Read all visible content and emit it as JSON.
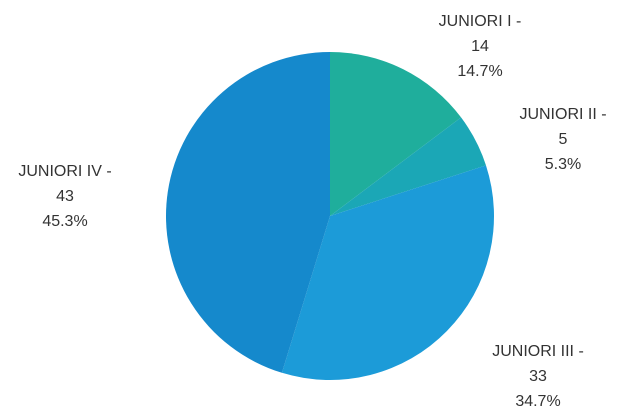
{
  "chart_data": {
    "type": "pie",
    "categories": [
      "JUNIORI I -",
      "JUNIORI II -",
      "JUNIORI III -",
      "JUNIORI IV -"
    ],
    "values": [
      14,
      5,
      33,
      43
    ],
    "percent_labels": [
      "14.7%",
      "5.3%",
      "34.7%",
      "45.3%"
    ],
    "colors": [
      "#1fae9c",
      "#1ba7b6",
      "#1c9bd8",
      "#1589cc"
    ]
  }
}
